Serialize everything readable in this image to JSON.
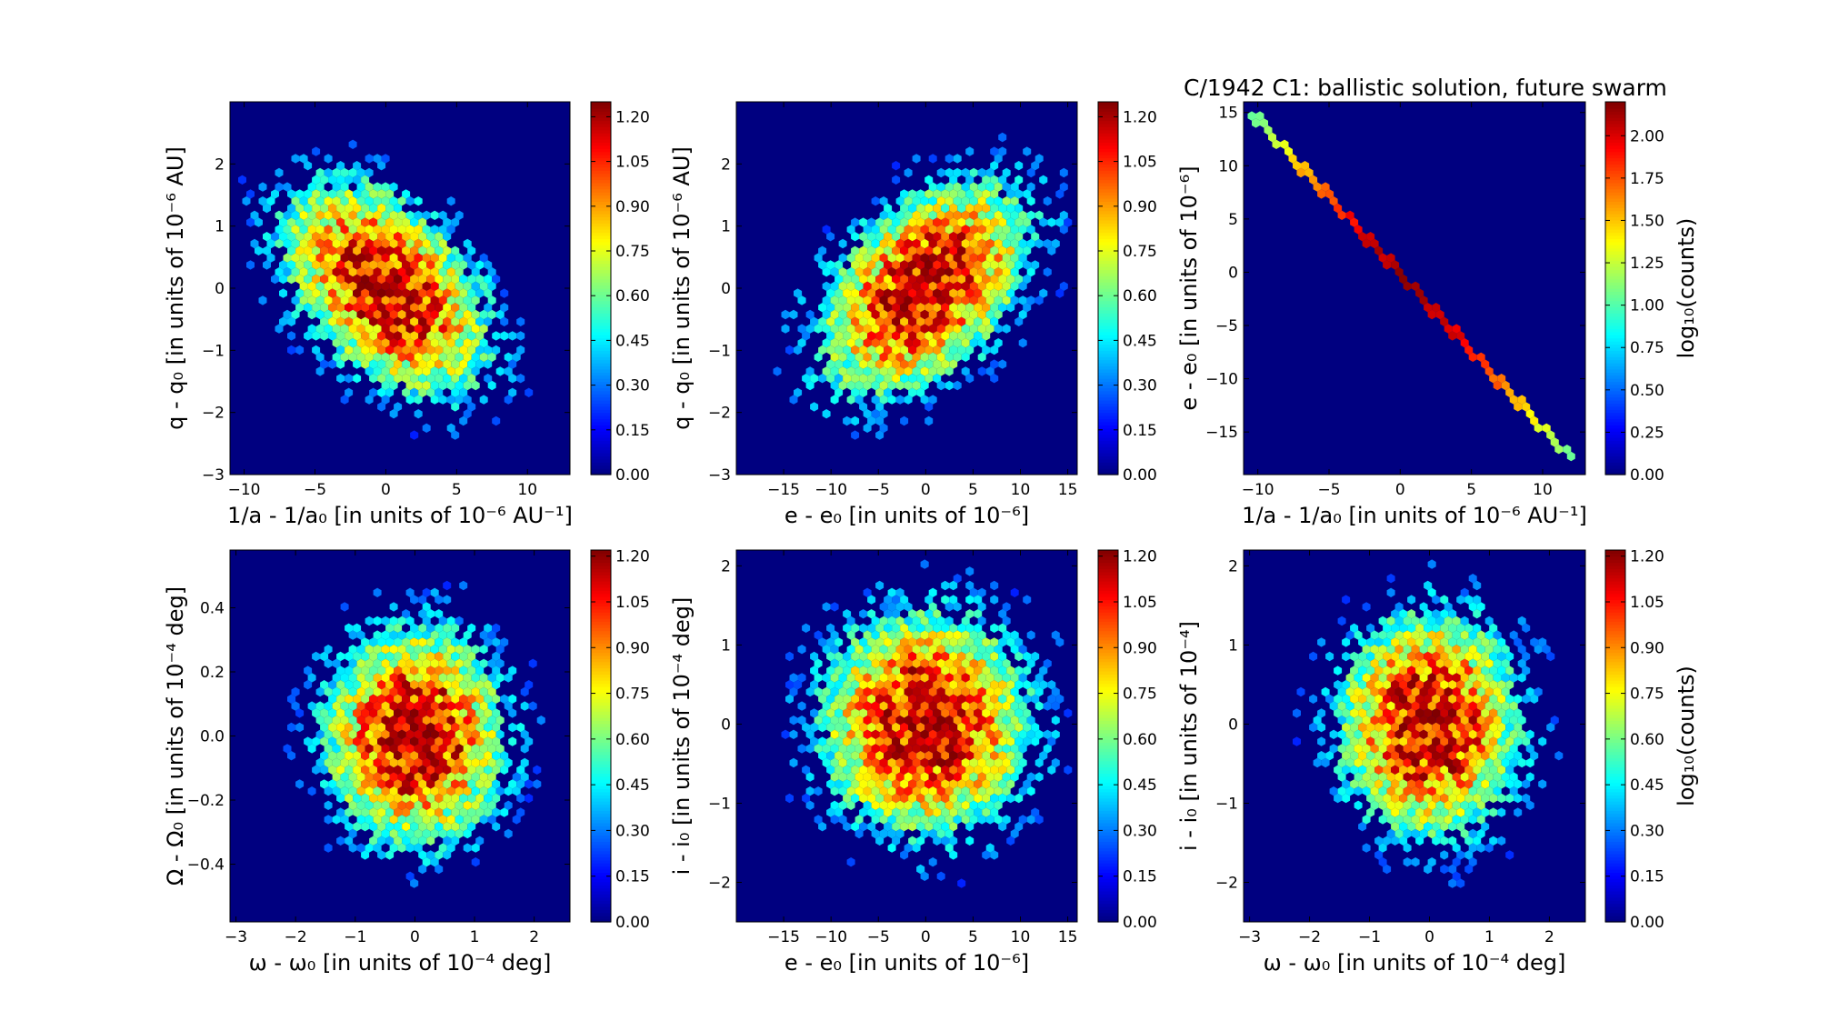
{
  "figure_title": "C/1942 C1:  ballistic solution, future swarm",
  "chart_data": [
    {
      "type": "heatmap",
      "subtype": "hexbin",
      "xlabel": "1/a - 1/a₀ [in units of 10⁻⁶ AU⁻¹]",
      "ylabel": "q - q₀ [in units of 10⁻⁶ AU]",
      "xlim": [
        -11,
        13
      ],
      "ylim": [
        -3,
        3
      ],
      "xticks": [
        -10,
        -5,
        0,
        5,
        10
      ],
      "yticks": [
        -3,
        -2,
        -1,
        0,
        1,
        2
      ],
      "cbar_max": 1.25,
      "cbar_ticks": [
        0.0,
        0.15,
        0.3,
        0.45,
        0.6,
        0.75,
        0.9,
        1.05,
        1.2
      ],
      "cbar_label": "",
      "dist": {
        "mx": 0,
        "my": 0,
        "sx": 3.6,
        "sy": 0.85,
        "rho": -0.45,
        "peak": 1.25
      }
    },
    {
      "type": "heatmap",
      "subtype": "hexbin",
      "xlabel": "e - e₀ [in units of 10⁻⁶]",
      "ylabel": "q - q₀ [in units of 10⁻⁶ AU]",
      "xlim": [
        -20,
        16
      ],
      "ylim": [
        -3,
        3
      ],
      "xticks": [
        -15,
        -10,
        -5,
        0,
        5,
        10,
        15
      ],
      "yticks": [
        -3,
        -2,
        -1,
        0,
        1,
        2
      ],
      "cbar_max": 1.25,
      "cbar_ticks": [
        0.0,
        0.15,
        0.3,
        0.45,
        0.6,
        0.75,
        0.9,
        1.05,
        1.2
      ],
      "cbar_label": "",
      "dist": {
        "mx": 0,
        "my": 0,
        "sx": 5.5,
        "sy": 0.85,
        "rho": 0.45,
        "peak": 1.25
      }
    },
    {
      "type": "heatmap",
      "subtype": "hexbin",
      "xlabel": "1/a - 1/a₀ [in units of 10⁻⁶ AU⁻¹]",
      "ylabel": "e - e₀ [in units of 10⁻⁶]",
      "xlim": [
        -11,
        13
      ],
      "ylim": [
        -19,
        16
      ],
      "xticks": [
        -10,
        -5,
        0,
        5,
        10
      ],
      "yticks": [
        -15,
        -10,
        -5,
        0,
        5,
        10,
        15
      ],
      "cbar_max": 2.2,
      "cbar_ticks": [
        0.0,
        0.25,
        0.5,
        0.75,
        1.0,
        1.25,
        1.5,
        1.75,
        2.0
      ],
      "cbar_label": "log₁₀(counts)",
      "line": {
        "x0": -10.5,
        "y0": 15.0,
        "x1": 12.0,
        "y1": -17.5,
        "peak": 2.2
      }
    },
    {
      "type": "heatmap",
      "subtype": "hexbin",
      "xlabel": "ω - ω₀ [in units of 10⁻⁴ deg]",
      "ylabel": "Ω - Ω₀ [in units of 10⁻⁴ deg]",
      "xlim": [
        -3.1,
        2.6
      ],
      "ylim": [
        -0.58,
        0.58
      ],
      "xticks": [
        -3,
        -2,
        -1,
        0,
        1,
        2
      ],
      "yticks": [
        -0.4,
        -0.2,
        0.0,
        0.2,
        0.4
      ],
      "cbar_max": 1.22,
      "cbar_ticks": [
        0.0,
        0.15,
        0.3,
        0.45,
        0.6,
        0.75,
        0.9,
        1.05,
        1.2
      ],
      "cbar_label": "",
      "dist": {
        "mx": 0,
        "my": 0,
        "sx": 0.75,
        "sy": 0.17,
        "rho": 0.0,
        "peak": 1.22
      }
    },
    {
      "type": "heatmap",
      "subtype": "hexbin",
      "xlabel": "e - e₀ [in units of 10⁻⁶]",
      "ylabel": "i - i₀ [in units of 10⁻⁴ deg]",
      "xlim": [
        -20,
        16
      ],
      "ylim": [
        -2.5,
        2.2
      ],
      "xticks": [
        -15,
        -10,
        -5,
        0,
        5,
        10,
        15
      ],
      "yticks": [
        -2,
        -1,
        0,
        1,
        2
      ],
      "cbar_max": 1.22,
      "cbar_ticks": [
        0.0,
        0.15,
        0.3,
        0.45,
        0.6,
        0.75,
        0.9,
        1.05,
        1.2
      ],
      "cbar_label": "",
      "dist": {
        "mx": 0,
        "my": 0,
        "sx": 5.5,
        "sy": 0.7,
        "rho": 0.0,
        "peak": 1.22
      }
    },
    {
      "type": "heatmap",
      "subtype": "hexbin",
      "xlabel": "ω - ω₀ [in units of 10⁻⁴ deg]",
      "ylabel": "i - i₀ [in units of 10⁻⁴]",
      "xlim": [
        -3.1,
        2.6
      ],
      "ylim": [
        -2.5,
        2.2
      ],
      "xticks": [
        -3,
        -2,
        -1,
        0,
        1,
        2
      ],
      "yticks": [
        -2,
        -1,
        0,
        1,
        2
      ],
      "cbar_max": 1.22,
      "cbar_ticks": [
        0.0,
        0.15,
        0.3,
        0.45,
        0.6,
        0.75,
        0.9,
        1.05,
        1.2
      ],
      "cbar_label": "log₁₀(counts)",
      "dist": {
        "mx": 0,
        "my": 0,
        "sx": 0.75,
        "sy": 0.7,
        "rho": 0.0,
        "peak": 1.22
      }
    }
  ]
}
